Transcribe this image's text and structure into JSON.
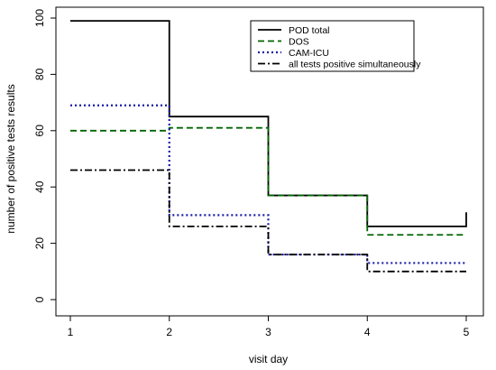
{
  "chart_data": {
    "type": "line",
    "step": true,
    "xlabel": "visit day",
    "ylabel": "number of positive tests results",
    "xlim": [
      1,
      5
    ],
    "ylim": [
      0,
      100
    ],
    "x_ticks": [
      1,
      2,
      3,
      4,
      5
    ],
    "y_ticks": [
      0,
      20,
      40,
      60,
      80,
      100
    ],
    "grid": false,
    "legend_position": "top-right",
    "x": [
      1,
      2,
      3,
      4,
      5
    ],
    "series": [
      {
        "name": "POD total",
        "values": [
          99,
          65,
          37,
          26,
          31
        ],
        "color": "#000000",
        "dash": "solid"
      },
      {
        "name": "DOS",
        "values": [
          60,
          61,
          37,
          23,
          23
        ],
        "color": "#006400",
        "dash": "dashed"
      },
      {
        "name": "CAM-ICU",
        "values": [
          69,
          30,
          16,
          13,
          13
        ],
        "color": "#1a1aa8",
        "dash": "dotted"
      },
      {
        "name": "all tests positive simultaneously",
        "values": [
          46,
          26,
          16,
          10,
          10
        ],
        "color": "#000000",
        "dash": "dashdot"
      }
    ]
  }
}
